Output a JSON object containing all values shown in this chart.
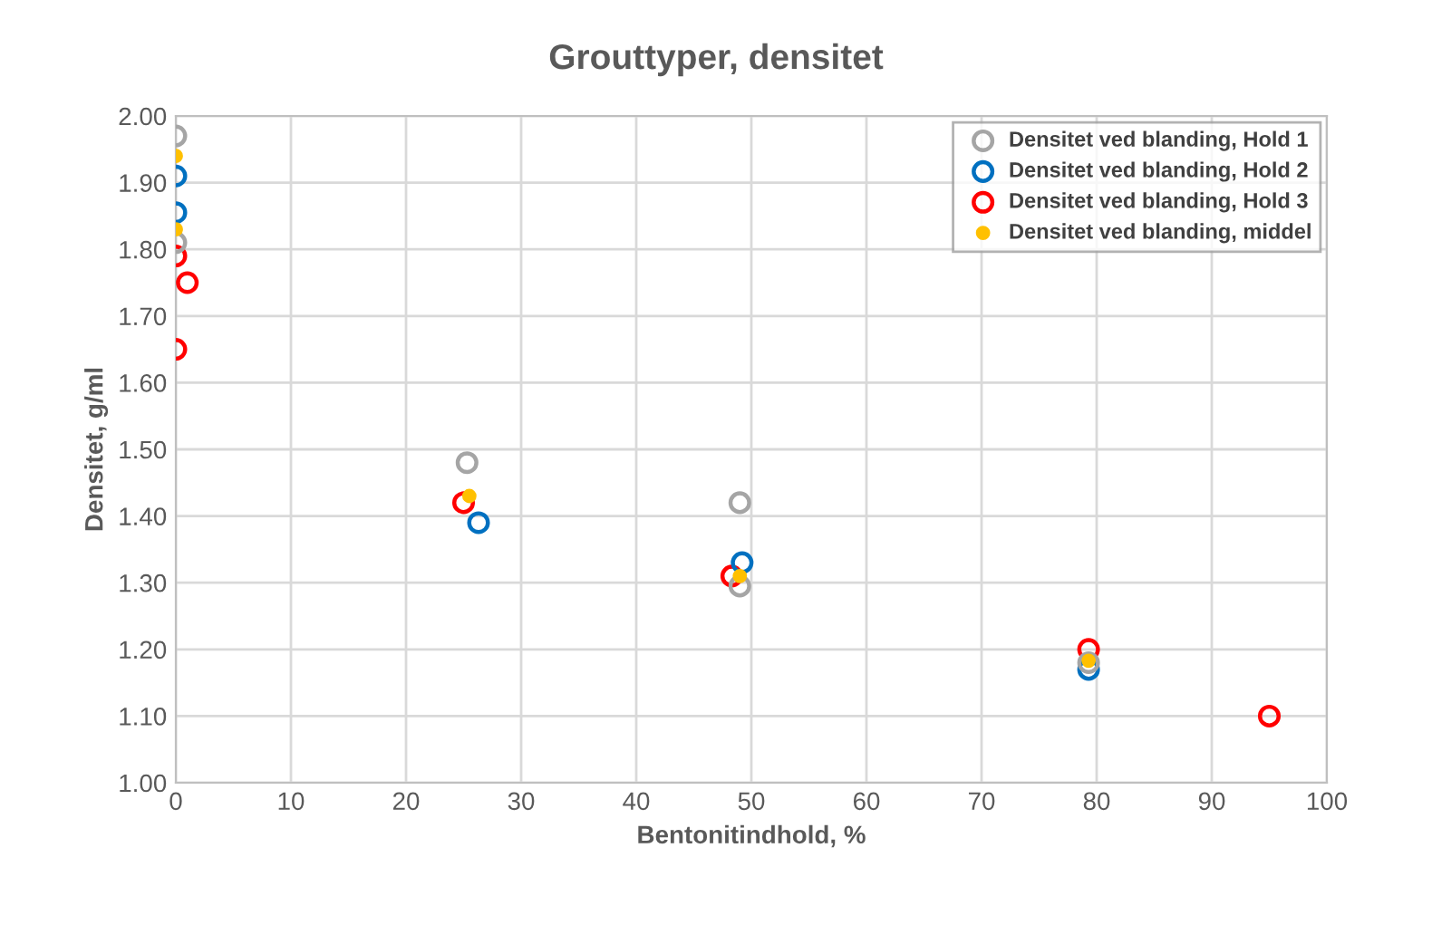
{
  "chart_data": {
    "type": "scatter",
    "title": "Grouttyper, densitet",
    "xlabel": "Bentonitindhold, %",
    "ylabel": "Densitet, g/ml",
    "xlim": [
      0,
      100
    ],
    "xticks": [
      0,
      10,
      20,
      30,
      40,
      50,
      60,
      70,
      80,
      90,
      100
    ],
    "ylim": [
      1.0,
      2.0
    ],
    "yticks": [
      {
        "value": 1.0,
        "label": "1.00"
      },
      {
        "value": 1.1,
        "label": "1.10"
      },
      {
        "value": 1.2,
        "label": "1.20"
      },
      {
        "value": 1.3,
        "label": "1.30"
      },
      {
        "value": 1.4,
        "label": "1.40"
      },
      {
        "value": 1.5,
        "label": "1.50"
      },
      {
        "value": 1.6,
        "label": "1.60"
      },
      {
        "value": 1.7,
        "label": "1.70"
      },
      {
        "value": 1.8,
        "label": "1.80"
      },
      {
        "value": 1.9,
        "label": "1.90"
      },
      {
        "value": 2.0,
        "label": "2.00"
      }
    ],
    "grid": true,
    "legend": "top right",
    "marker": "circle",
    "series": [
      {
        "name": "Densitet ved blanding, Hold 1",
        "color": "#a5a5a5",
        "x": [
          0,
          0,
          25.3,
          49,
          49,
          79.3
        ],
        "values": [
          1.97,
          1.81,
          1.48,
          1.42,
          1.295,
          1.18
        ]
      },
      {
        "name": "Densitet ved blanding, Hold 2",
        "color": "#0070c0",
        "x": [
          0,
          0,
          26.3,
          49.2,
          79.3
        ],
        "values": [
          1.91,
          1.855,
          1.39,
          1.33,
          1.17
        ]
      },
      {
        "name": "Densitet ved blanding, Hold 3",
        "color": "#ff0000",
        "x": [
          0,
          1,
          0,
          25,
          48.3,
          79.3,
          95
        ],
        "values": [
          1.79,
          1.75,
          1.65,
          1.42,
          1.31,
          1.2,
          1.1
        ]
      },
      {
        "name": "Densitet ved blanding, middel",
        "color": "#ffc000",
        "x": [
          0,
          0,
          25.5,
          49,
          79.3
        ],
        "values": [
          1.94,
          1.83,
          1.43,
          1.31,
          1.183
        ]
      }
    ]
  }
}
